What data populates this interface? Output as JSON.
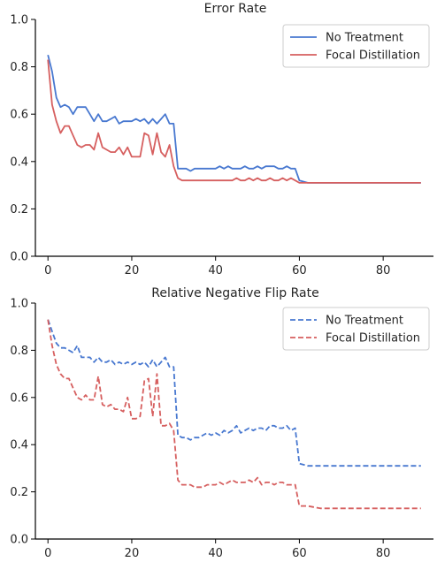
{
  "chart_data": [
    {
      "type": "line",
      "title": "Error Rate",
      "xlabel": "",
      "ylabel": "",
      "xlim": [
        -3,
        92
      ],
      "ylim": [
        0,
        1.0
      ],
      "xticks": [
        0,
        20,
        40,
        60,
        80
      ],
      "yticks": [
        0.0,
        0.2,
        0.4,
        0.6,
        0.8,
        1.0
      ],
      "grid": false,
      "legend_position": "top-right",
      "series": [
        {
          "name": "No Treatment",
          "color": "#4878d0",
          "dash": "solid",
          "x": [
            0,
            1,
            2,
            3,
            4,
            5,
            6,
            7,
            8,
            9,
            10,
            11,
            12,
            13,
            14,
            15,
            16,
            17,
            18,
            19,
            20,
            21,
            22,
            23,
            24,
            25,
            26,
            27,
            28,
            29,
            30,
            31,
            32,
            33,
            34,
            35,
            36,
            37,
            38,
            39,
            40,
            41,
            42,
            43,
            44,
            45,
            46,
            47,
            48,
            49,
            50,
            51,
            52,
            53,
            54,
            55,
            56,
            57,
            58,
            59,
            60,
            62,
            65,
            70,
            75,
            80,
            85,
            89
          ],
          "y": [
            0.85,
            0.78,
            0.67,
            0.63,
            0.64,
            0.63,
            0.6,
            0.63,
            0.63,
            0.63,
            0.6,
            0.57,
            0.6,
            0.57,
            0.57,
            0.58,
            0.59,
            0.56,
            0.57,
            0.57,
            0.57,
            0.58,
            0.57,
            0.58,
            0.56,
            0.58,
            0.56,
            0.58,
            0.6,
            0.56,
            0.56,
            0.37,
            0.37,
            0.37,
            0.36,
            0.37,
            0.37,
            0.37,
            0.37,
            0.37,
            0.37,
            0.38,
            0.37,
            0.38,
            0.37,
            0.37,
            0.37,
            0.38,
            0.37,
            0.37,
            0.38,
            0.37,
            0.38,
            0.38,
            0.38,
            0.37,
            0.37,
            0.38,
            0.37,
            0.37,
            0.32,
            0.31,
            0.31,
            0.31,
            0.31,
            0.31,
            0.31,
            0.31
          ]
        },
        {
          "name": "Focal Distillation",
          "color": "#d65f5f",
          "dash": "solid",
          "x": [
            0,
            1,
            2,
            3,
            4,
            5,
            6,
            7,
            8,
            9,
            10,
            11,
            12,
            13,
            14,
            15,
            16,
            17,
            18,
            19,
            20,
            21,
            22,
            23,
            24,
            25,
            26,
            27,
            28,
            29,
            30,
            31,
            32,
            33,
            34,
            35,
            36,
            37,
            38,
            39,
            40,
            41,
            42,
            43,
            44,
            45,
            46,
            47,
            48,
            49,
            50,
            51,
            52,
            53,
            54,
            55,
            56,
            57,
            58,
            59,
            60,
            62,
            65,
            70,
            75,
            80,
            85,
            89
          ],
          "y": [
            0.83,
            0.64,
            0.57,
            0.52,
            0.55,
            0.55,
            0.51,
            0.47,
            0.46,
            0.47,
            0.47,
            0.45,
            0.52,
            0.46,
            0.45,
            0.44,
            0.44,
            0.46,
            0.43,
            0.46,
            0.42,
            0.42,
            0.42,
            0.52,
            0.51,
            0.43,
            0.52,
            0.44,
            0.42,
            0.47,
            0.38,
            0.33,
            0.32,
            0.32,
            0.32,
            0.32,
            0.32,
            0.32,
            0.32,
            0.32,
            0.32,
            0.32,
            0.32,
            0.32,
            0.32,
            0.33,
            0.32,
            0.32,
            0.33,
            0.32,
            0.33,
            0.32,
            0.32,
            0.33,
            0.32,
            0.32,
            0.33,
            0.32,
            0.33,
            0.32,
            0.31,
            0.31,
            0.31,
            0.31,
            0.31,
            0.31,
            0.31,
            0.31
          ]
        }
      ]
    },
    {
      "type": "line",
      "title": "Relative Negative Flip Rate",
      "xlabel": "",
      "ylabel": "",
      "xlim": [
        -3,
        92
      ],
      "ylim": [
        0,
        1.0
      ],
      "xticks": [
        0,
        20,
        40,
        60,
        80
      ],
      "yticks": [
        0.0,
        0.2,
        0.4,
        0.6,
        0.8,
        1.0
      ],
      "grid": false,
      "legend_position": "top-right",
      "series": [
        {
          "name": "No Treatment",
          "color": "#4878d0",
          "dash": "dashed",
          "x": [
            0,
            1,
            2,
            3,
            4,
            5,
            6,
            7,
            8,
            9,
            10,
            11,
            12,
            13,
            14,
            15,
            16,
            17,
            18,
            19,
            20,
            21,
            22,
            23,
            24,
            25,
            26,
            27,
            28,
            29,
            30,
            31,
            32,
            33,
            34,
            35,
            36,
            37,
            38,
            39,
            40,
            41,
            42,
            43,
            44,
            45,
            46,
            47,
            48,
            49,
            50,
            51,
            52,
            53,
            54,
            55,
            56,
            57,
            58,
            59,
            60,
            62,
            65,
            70,
            75,
            80,
            85,
            89
          ],
          "y": [
            0.93,
            0.88,
            0.83,
            0.81,
            0.81,
            0.8,
            0.79,
            0.82,
            0.77,
            0.77,
            0.77,
            0.75,
            0.77,
            0.75,
            0.75,
            0.76,
            0.74,
            0.75,
            0.74,
            0.75,
            0.74,
            0.75,
            0.74,
            0.75,
            0.73,
            0.76,
            0.73,
            0.75,
            0.77,
            0.73,
            0.73,
            0.44,
            0.43,
            0.43,
            0.42,
            0.43,
            0.43,
            0.44,
            0.45,
            0.44,
            0.45,
            0.44,
            0.46,
            0.45,
            0.46,
            0.48,
            0.45,
            0.46,
            0.47,
            0.46,
            0.47,
            0.47,
            0.46,
            0.48,
            0.48,
            0.47,
            0.47,
            0.48,
            0.46,
            0.47,
            0.32,
            0.31,
            0.31,
            0.31,
            0.31,
            0.31,
            0.31,
            0.31
          ]
        },
        {
          "name": "Focal Distillation",
          "color": "#d65f5f",
          "dash": "dashed",
          "x": [
            0,
            1,
            2,
            3,
            4,
            5,
            6,
            7,
            8,
            9,
            10,
            11,
            12,
            13,
            14,
            15,
            16,
            17,
            18,
            19,
            20,
            21,
            22,
            23,
            24,
            25,
            26,
            27,
            28,
            29,
            30,
            31,
            32,
            33,
            34,
            35,
            36,
            37,
            38,
            39,
            40,
            41,
            42,
            43,
            44,
            45,
            46,
            47,
            48,
            49,
            50,
            51,
            52,
            53,
            54,
            55,
            56,
            57,
            58,
            59,
            60,
            62,
            65,
            70,
            75,
            80,
            85,
            89
          ],
          "y": [
            0.93,
            0.82,
            0.74,
            0.7,
            0.68,
            0.68,
            0.64,
            0.6,
            0.59,
            0.61,
            0.59,
            0.59,
            0.69,
            0.57,
            0.56,
            0.57,
            0.55,
            0.55,
            0.54,
            0.6,
            0.51,
            0.51,
            0.52,
            0.67,
            0.68,
            0.52,
            0.7,
            0.48,
            0.48,
            0.49,
            0.46,
            0.25,
            0.23,
            0.23,
            0.23,
            0.22,
            0.22,
            0.22,
            0.23,
            0.23,
            0.23,
            0.24,
            0.23,
            0.24,
            0.25,
            0.24,
            0.24,
            0.24,
            0.25,
            0.24,
            0.26,
            0.23,
            0.24,
            0.24,
            0.23,
            0.24,
            0.24,
            0.23,
            0.23,
            0.23,
            0.14,
            0.14,
            0.13,
            0.13,
            0.13,
            0.13,
            0.13,
            0.13
          ]
        }
      ]
    }
  ]
}
